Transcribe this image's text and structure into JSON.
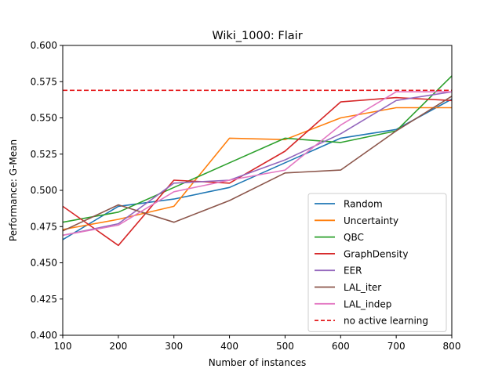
{
  "chart_data": {
    "type": "line",
    "title": "Wiki_1000: Flair",
    "xlabel": "Number of instances",
    "ylabel": "Performance: G-Mean",
    "xlim": [
      100,
      800
    ],
    "ylim": [
      0.4,
      0.6
    ],
    "x": [
      100,
      200,
      300,
      400,
      500,
      600,
      700,
      800
    ],
    "xticks": [
      "100",
      "200",
      "300",
      "400",
      "500",
      "600",
      "700",
      "800"
    ],
    "yticks": [
      "0.400",
      "0.425",
      "0.450",
      "0.475",
      "0.500",
      "0.525",
      "0.550",
      "0.575",
      "0.600"
    ],
    "grid": false,
    "legend_position": "lower-right",
    "series": [
      {
        "name": "Random",
        "color": "#1f77b4",
        "values": [
          0.466,
          0.489,
          0.494,
          0.502,
          0.519,
          0.536,
          0.542,
          0.563
        ]
      },
      {
        "name": "Uncertainty",
        "color": "#ff7f0e",
        "values": [
          0.473,
          0.48,
          0.489,
          0.536,
          0.535,
          0.55,
          0.557,
          0.557
        ]
      },
      {
        "name": "QBC",
        "color": "#2ca02c",
        "values": [
          0.478,
          0.485,
          0.502,
          0.519,
          0.536,
          0.533,
          0.541,
          0.579
        ]
      },
      {
        "name": "GraphDensity",
        "color": "#d62728",
        "values": [
          0.489,
          0.462,
          0.507,
          0.505,
          0.527,
          0.561,
          0.564,
          0.562
        ]
      },
      {
        "name": "EER",
        "color": "#9467bd",
        "values": [
          0.469,
          0.477,
          0.505,
          0.507,
          0.521,
          0.539,
          0.562,
          0.568
        ]
      },
      {
        "name": "LAL_iter",
        "color": "#8c564b",
        "values": [
          0.472,
          0.49,
          0.478,
          0.493,
          0.512,
          0.514,
          0.541,
          0.565
        ]
      },
      {
        "name": "LAL_indep",
        "color": "#e377c2",
        "values": [
          0.469,
          0.476,
          0.499,
          0.507,
          0.514,
          0.545,
          0.568,
          0.568
        ]
      }
    ],
    "baseline": {
      "name": "no active learning",
      "color": "#e41a1c",
      "value": 0.569
    }
  }
}
